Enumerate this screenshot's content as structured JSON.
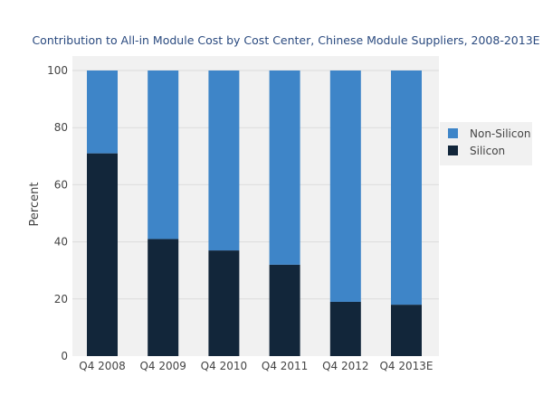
{
  "chart_data": {
    "type": "bar",
    "stacked": true,
    "title": "Contribution to All-in Module Cost by Cost Center, Chinese Module Suppliers, 2008-2013E",
    "xlabel": "",
    "ylabel": "Percent",
    "ylim": [
      0,
      100
    ],
    "yticks": [
      0,
      20,
      40,
      60,
      80,
      100
    ],
    "categories": [
      "Q4 2008",
      "Q4 2009",
      "Q4 2010",
      "Q4 2011",
      "Q4 2012",
      "Q4 2013E"
    ],
    "series": [
      {
        "name": "Silicon",
        "color": "#12263a",
        "values": [
          71,
          41,
          37,
          32,
          19,
          18
        ]
      },
      {
        "name": "Non-Silicon",
        "color": "#3e85c8",
        "values": [
          29,
          59,
          63,
          68,
          81,
          82
        ]
      }
    ],
    "legend": {
      "position": "right",
      "entries": [
        "Non-Silicon",
        "Silicon"
      ]
    },
    "grid": true,
    "colors": {
      "plot_background": "#f1f1f1",
      "grid": "#dcdcdc",
      "title": "#2a4a7f",
      "text": "#444444"
    }
  }
}
